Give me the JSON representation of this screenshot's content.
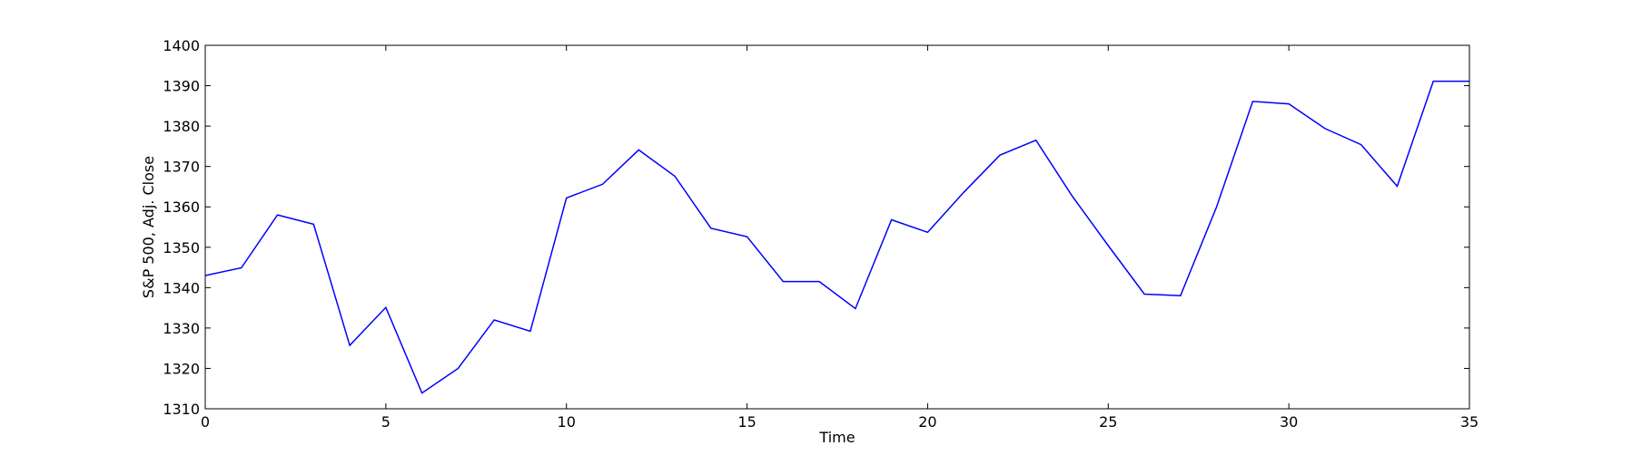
{
  "chart_data": {
    "type": "line",
    "title": "",
    "xlabel": "Time",
    "ylabel": "S&P 500, Adj. Close",
    "xlim": [
      0,
      35
    ],
    "ylim": [
      1310,
      1400
    ],
    "xticks": [
      0,
      5,
      10,
      15,
      20,
      25,
      30,
      35
    ],
    "yticks": [
      1310,
      1320,
      1330,
      1340,
      1350,
      1360,
      1370,
      1380,
      1390,
      1400
    ],
    "grid": false,
    "line_color": "#0000ff",
    "series": [
      {
        "x": [
          0,
          1,
          2,
          3,
          4,
          5,
          6,
          7,
          8,
          9,
          10,
          11,
          12,
          13,
          14,
          15,
          16,
          17,
          18,
          19,
          20,
          21,
          22,
          23,
          24,
          25,
          26,
          27,
          28,
          29,
          30,
          31,
          32,
          33,
          34,
          35
        ],
        "values": [
          1343.0,
          1344.9,
          1358.0,
          1355.7,
          1325.7,
          1335.1,
          1313.9,
          1320.0,
          1332.0,
          1329.2,
          1362.2,
          1365.6,
          1374.1,
          1367.6,
          1354.7,
          1352.6,
          1341.5,
          1341.5,
          1334.8,
          1356.8,
          1353.7,
          1363.6,
          1372.8,
          1376.5,
          1362.7,
          1350.4,
          1338.4,
          1338.0,
          1360.0,
          1386.1,
          1385.5,
          1379.4,
          1375.4,
          1365.1,
          1391.1,
          1391.1
        ]
      }
    ]
  }
}
